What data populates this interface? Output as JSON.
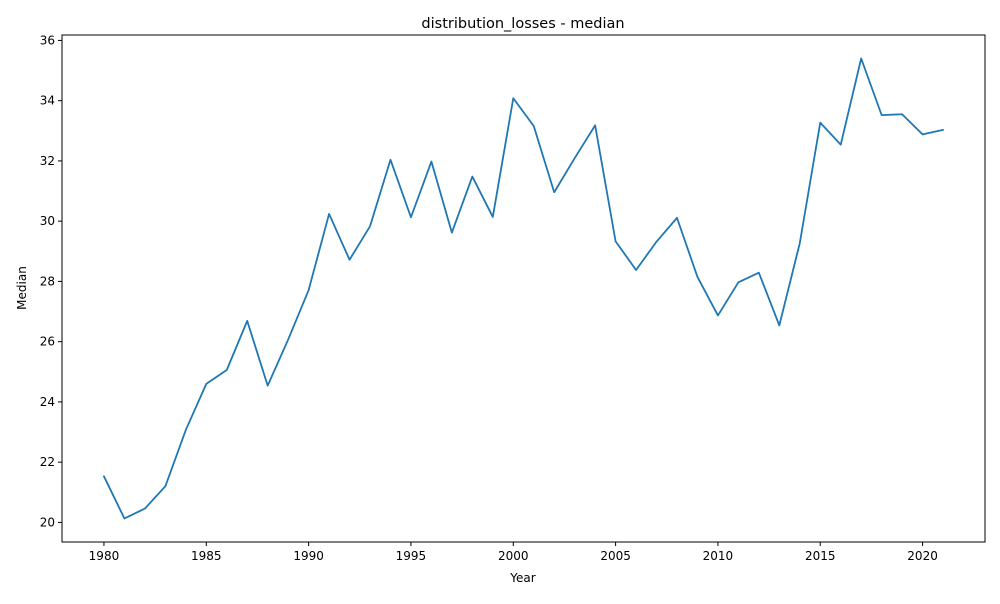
{
  "chart_data": {
    "type": "line",
    "title": "distribution_losses - median",
    "xlabel": "Year",
    "ylabel": "Median",
    "xlim": [
      1977.95,
      2023.05
    ],
    "ylim": [
      19.35,
      36.18
    ],
    "xticks": [
      1980,
      1985,
      1990,
      1995,
      2000,
      2005,
      2010,
      2015,
      2020
    ],
    "yticks": [
      20,
      22,
      24,
      26,
      28,
      30,
      32,
      34,
      36
    ],
    "grid": false,
    "line_color": "#1f77b4",
    "series": [
      {
        "x": [
          1980,
          1981,
          1982,
          1983,
          1984,
          1985,
          1986,
          1987,
          1988,
          1989,
          1990,
          1991,
          1992,
          1993,
          1994,
          1995,
          1996,
          1997,
          1998,
          1999,
          2000,
          2001,
          2002,
          2003,
          2004,
          2005,
          2006,
          2007,
          2008,
          2009,
          2010,
          2011,
          2012,
          2013,
          2014,
          2015,
          2016,
          2017,
          2018,
          2019,
          2020,
          2021
        ],
        "values": [
          21.53,
          20.13,
          20.46,
          21.2,
          23.07,
          24.6,
          25.06,
          26.69,
          24.54,
          26.07,
          27.71,
          30.24,
          28.72,
          29.83,
          32.04,
          30.13,
          31.98,
          29.62,
          31.48,
          30.14,
          34.08,
          33.16,
          30.96,
          32.09,
          33.18,
          29.33,
          28.38,
          29.32,
          30.11,
          28.15,
          26.87,
          27.97,
          28.29,
          26.54,
          29.27,
          33.27,
          32.54,
          35.4,
          33.52,
          33.55,
          32.88,
          33.03
        ]
      }
    ]
  }
}
